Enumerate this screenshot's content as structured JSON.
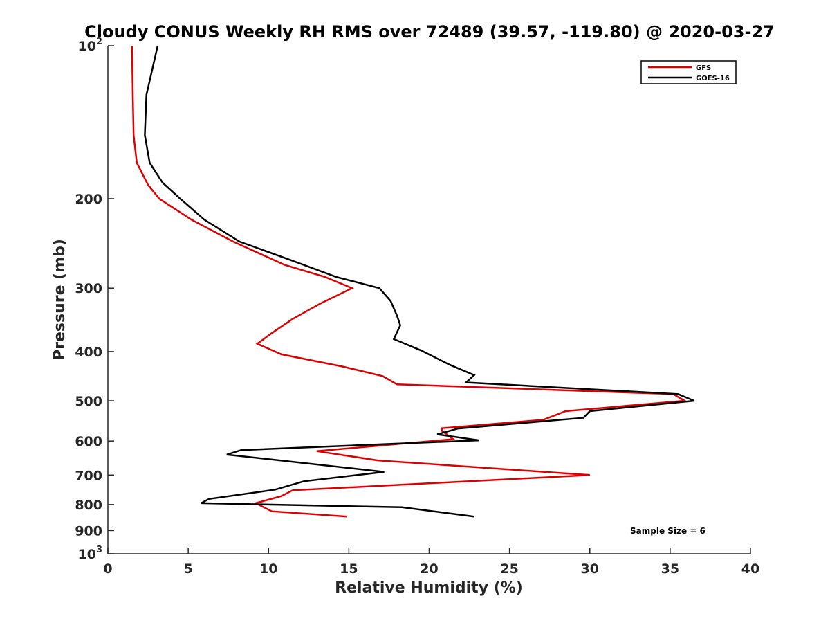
{
  "chart_data": {
    "type": "line",
    "title": "Cloudy CONUS Weekly RH RMS over 72489 (39.57, -119.80) @ 2020-03-27",
    "xlabel": "Relative Humidity (%)",
    "ylabel": "Pressure (mb)",
    "xlim": [
      0,
      40
    ],
    "ylim": [
      100,
      1000
    ],
    "y_scale": "log",
    "y_reversed": true,
    "grid": false,
    "legend_position": "top-right",
    "x_ticks": [
      0,
      5,
      10,
      15,
      20,
      25,
      30,
      35,
      40
    ],
    "y_ticks": [
      {
        "value": 100,
        "base": "10",
        "exp": "2"
      },
      {
        "value": 200,
        "label": "200"
      },
      {
        "value": 300,
        "label": "300"
      },
      {
        "value": 400,
        "label": "400"
      },
      {
        "value": 500,
        "label": "500"
      },
      {
        "value": 600,
        "label": "600"
      },
      {
        "value": 700,
        "label": "700"
      },
      {
        "value": 800,
        "label": "800"
      },
      {
        "value": 900,
        "label": "900"
      },
      {
        "value": 1000,
        "base": "10",
        "exp": "3"
      }
    ],
    "series": [
      {
        "name": "GFS",
        "color": "#dd0000",
        "points": [
          [
            1.5,
            100
          ],
          [
            1.55,
            125
          ],
          [
            1.6,
            150
          ],
          [
            1.8,
            170
          ],
          [
            2.5,
            188
          ],
          [
            3.2,
            200
          ],
          [
            5.2,
            220
          ],
          [
            7.8,
            243
          ],
          [
            11,
            270
          ],
          [
            13.5,
            285
          ],
          [
            15.2,
            300
          ],
          [
            13.2,
            322
          ],
          [
            11.5,
            345
          ],
          [
            10.2,
            368
          ],
          [
            9.3,
            386
          ],
          [
            10.8,
            405
          ],
          [
            14.6,
            428
          ],
          [
            17.1,
            447
          ],
          [
            18.0,
            464
          ],
          [
            35.2,
            485
          ],
          [
            35.9,
            500
          ],
          [
            28.5,
            524
          ],
          [
            27.1,
            545
          ],
          [
            20.8,
            566
          ],
          [
            20.8,
            573
          ],
          [
            21.5,
            595
          ],
          [
            13.0,
            628
          ],
          [
            16.8,
            655
          ],
          [
            30.0,
            700
          ],
          [
            11.5,
            750
          ],
          [
            10.8,
            770
          ],
          [
            9.2,
            795
          ],
          [
            9.7,
            810
          ],
          [
            10.2,
            825
          ],
          [
            14.9,
            845
          ]
        ]
      },
      {
        "name": "GOES-16",
        "color": "#000000",
        "points": [
          [
            3.1,
            100
          ],
          [
            2.4,
            125
          ],
          [
            2.3,
            150
          ],
          [
            2.6,
            170
          ],
          [
            3.4,
            186
          ],
          [
            4.5,
            200
          ],
          [
            6.0,
            220
          ],
          [
            8.2,
            243
          ],
          [
            11.5,
            265
          ],
          [
            14.2,
            285
          ],
          [
            16.9,
            300
          ],
          [
            17.6,
            318
          ],
          [
            18.0,
            340
          ],
          [
            18.2,
            355
          ],
          [
            17.8,
            378
          ],
          [
            19.5,
            398
          ],
          [
            21.3,
            425
          ],
          [
            22.8,
            445
          ],
          [
            22.3,
            460
          ],
          [
            35.5,
            485
          ],
          [
            36.5,
            500
          ],
          [
            30.0,
            524
          ],
          [
            29.6,
            540
          ],
          [
            21.8,
            567
          ],
          [
            20.5,
            582
          ],
          [
            23.1,
            598
          ],
          [
            8.3,
            625
          ],
          [
            7.4,
            638
          ],
          [
            17.2,
            690
          ],
          [
            12.2,
            720
          ],
          [
            10.4,
            748
          ],
          [
            6.3,
            780
          ],
          [
            5.8,
            795
          ],
          [
            18.3,
            810
          ],
          [
            22.8,
            845
          ]
        ]
      }
    ],
    "annotations": [
      "Sample Size = 6"
    ]
  }
}
